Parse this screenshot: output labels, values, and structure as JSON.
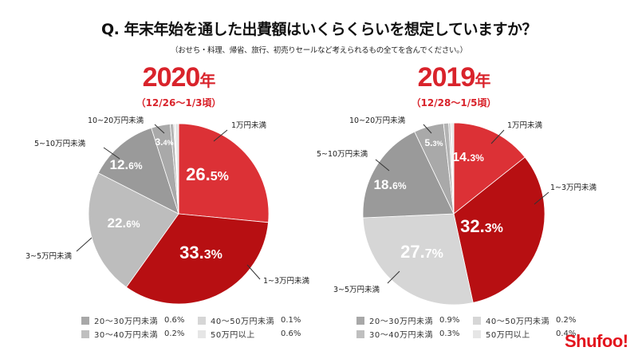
{
  "title": "Q. 年末年始を通した出費額はいくらくらいを想定していますか？",
  "subtitle": "（おせち・料理、帰省、旅行、初売りセールなど考えられるもの全てを含んでください。）",
  "brand": "Shufoo!",
  "chart_data": [
    {
      "type": "pie",
      "title": "2020年",
      "title_year": "2020",
      "title_suffix": "年",
      "period": "（12/26〜1/3頃）",
      "categories": [
        "1万円未満",
        "1~3万円未満",
        "3~5万円未満",
        "5~10万円未満",
        "10~20万円未満",
        "20〜30万円未満",
        "30〜40万円未満",
        "40〜50万円未満",
        "50万円以上"
      ],
      "values": [
        26.5,
        33.3,
        22.6,
        12.6,
        3.4,
        0.6,
        0.2,
        0.1,
        0.6
      ],
      "value_labels": [
        {
          "main": "26.",
          "dec": "5%"
        },
        {
          "main": "33.",
          "dec": "3%"
        },
        {
          "main": "22.",
          "dec": "6%"
        },
        {
          "main": "12.",
          "dec": "6%"
        },
        {
          "main": "3.",
          "dec": "4%"
        },
        null,
        null,
        null,
        null
      ],
      "colors": [
        "#dc3136",
        "#b70f12",
        "#bdbdbd",
        "#9a9a9a",
        "#a9a9a9",
        "#b3b3b3",
        "#c4c4c4",
        "#d4d4d4",
        "#e4e4e4"
      ],
      "start": "12 o'clock, clockwise",
      "legend": [
        {
          "label": "20〜30万円未満",
          "value": "0.6%",
          "color": "#a8a8a8"
        },
        {
          "label": "40〜50万円未満",
          "value": "0.1%",
          "color": "#d6d6d6"
        },
        {
          "label": "30〜40万円未満",
          "value": "0.2%",
          "color": "#bfbfbf"
        },
        {
          "label": "50万円以上",
          "value": "0.6%",
          "color": "#e6e6e6"
        }
      ]
    },
    {
      "type": "pie",
      "title": "2019年",
      "title_year": "2019",
      "title_suffix": "年",
      "period": "（12/28〜1/5頃）",
      "categories": [
        "1万円未満",
        "1~3万円未満",
        "3~5万円未満",
        "5~10万円未満",
        "10~20万円未満",
        "20〜30万円未満",
        "30〜40万円未満",
        "40〜50万円未満",
        "50万円以上"
      ],
      "values": [
        14.3,
        32.3,
        27.7,
        18.6,
        5.3,
        0.9,
        0.3,
        0.2,
        0.4
      ],
      "value_labels": [
        {
          "main": "14.",
          "dec": "3%"
        },
        {
          "main": "32.",
          "dec": "3%"
        },
        {
          "main": "27.",
          "dec": "7%"
        },
        {
          "main": "18.",
          "dec": "6%"
        },
        {
          "main": "5.",
          "dec": "3%"
        },
        null,
        null,
        null,
        null
      ],
      "colors": [
        "#dc3136",
        "#b70f12",
        "#d6d6d6",
        "#9a9a9a",
        "#a9a9a9",
        "#b3b3b3",
        "#c4c4c4",
        "#d4d4d4",
        "#e4e4e4"
      ],
      "start": "12 o'clock, clockwise",
      "legend": [
        {
          "label": "20〜30万円未満",
          "value": "0.9%",
          "color": "#a8a8a8"
        },
        {
          "label": "40〜50万円未満",
          "value": "0.2%",
          "color": "#d6d6d6"
        },
        {
          "label": "30〜40万円未満",
          "value": "0.3%",
          "color": "#bfbfbf"
        },
        {
          "label": "50万円以上",
          "value": "0.4%",
          "color": "#e6e6e6"
        }
      ]
    }
  ]
}
